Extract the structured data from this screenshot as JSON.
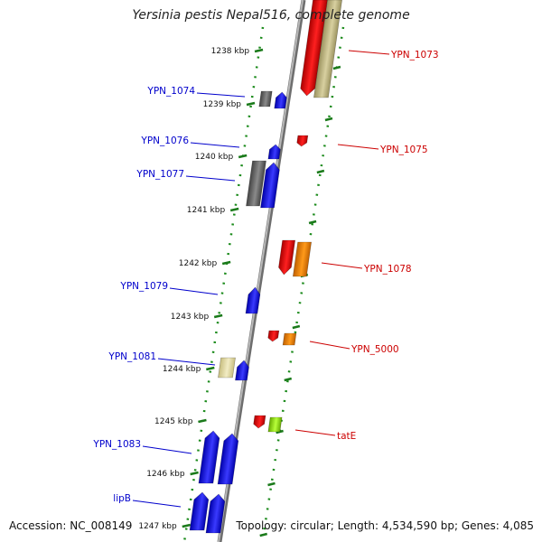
{
  "title": "Yersinia pestis Nepal516, complete genome",
  "footer": {
    "accession": "Accession: NC_008149",
    "topology": "Topology: circular; Length: 4,534,590 bp; Genes: 4,085"
  },
  "colors": {
    "gene_left_label": "#0000cc",
    "gene_right_label": "#cc0000",
    "dotted_track": "#1a8a1a",
    "backbone": "#888888"
  },
  "ticks": [
    {
      "label": "1238 kbp"
    },
    {
      "label": "1239 kbp"
    },
    {
      "label": "1240 kbp"
    },
    {
      "label": "1241 kbp"
    },
    {
      "label": "1242 kbp"
    },
    {
      "label": "1243 kbp"
    },
    {
      "label": "1244 kbp"
    },
    {
      "label": "1245 kbp"
    },
    {
      "label": "1246 kbp"
    },
    {
      "label": "1247 kbp"
    }
  ],
  "left_labels": [
    {
      "name": "YPN_1074"
    },
    {
      "name": "YPN_1076"
    },
    {
      "name": "YPN_1077"
    },
    {
      "name": "YPN_1079"
    },
    {
      "name": "YPN_1081"
    },
    {
      "name": "YPN_1083"
    },
    {
      "name": "lipB"
    }
  ],
  "right_labels": [
    {
      "name": "YPN_1073"
    },
    {
      "name": "YPN_1075"
    },
    {
      "name": "YPN_1078"
    },
    {
      "name": "YPN_5000"
    },
    {
      "name": "tatE"
    }
  ]
}
